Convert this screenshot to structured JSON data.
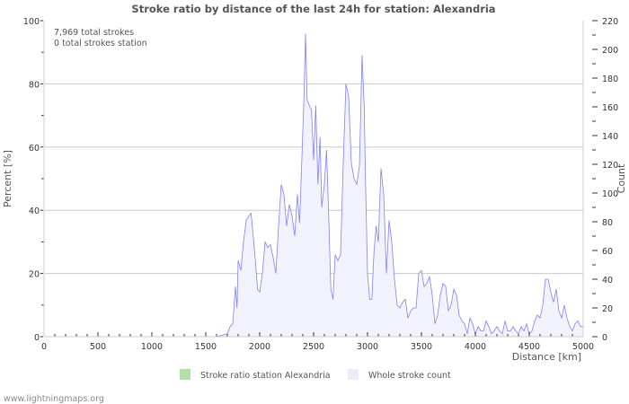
{
  "chart_data": {
    "type": "area",
    "title": "Stroke ratio by distance of the last 24h for station: Alexandria",
    "xlabel": "Distance   [km]",
    "ylabel_left": "Percent   [%]",
    "ylabel_right": "Count",
    "xlim": [
      0,
      5000
    ],
    "ylim_left": [
      0,
      100
    ],
    "ylim_right": [
      0,
      220
    ],
    "x_ticks": [
      "0",
      "500",
      "1000",
      "1500",
      "2000",
      "2500",
      "3000",
      "3500",
      "4000",
      "4500",
      "5000"
    ],
    "y_ticks_left": [
      "0",
      "20",
      "40",
      "60",
      "80",
      "100"
    ],
    "y_ticks_right": [
      "0",
      "20",
      "40",
      "60",
      "80",
      "100",
      "120",
      "140",
      "160",
      "180",
      "200",
      "220"
    ],
    "grid": true,
    "annotations": [
      "7,969 total strokes",
      "0 total strokes station"
    ],
    "legend": {
      "placement": "bottom",
      "items": [
        {
          "label": "Stroke ratio station Alexandria",
          "color": "#b3e0a8"
        },
        {
          "label": "Whole stroke count",
          "color": "#ecebfb"
        }
      ]
    },
    "series": [
      {
        "name": "Stroke ratio station Alexandria",
        "axis": "left",
        "values": []
      },
      {
        "name": "Whole stroke count",
        "axis": "right",
        "line_color": "#8080ff",
        "fill_color": "#f2f2fc",
        "points": [
          [
            0,
            0
          ],
          [
            1600,
            0
          ],
          [
            1650,
            1
          ],
          [
            1700,
            2
          ],
          [
            1725,
            7
          ],
          [
            1750,
            9
          ],
          [
            1775,
            35
          ],
          [
            1790,
            20
          ],
          [
            1800,
            53
          ],
          [
            1825,
            46
          ],
          [
            1850,
            66
          ],
          [
            1875,
            81
          ],
          [
            1900,
            84
          ],
          [
            1920,
            86
          ],
          [
            1940,
            70
          ],
          [
            1960,
            53
          ],
          [
            1980,
            33
          ],
          [
            2000,
            31
          ],
          [
            2025,
            44
          ],
          [
            2050,
            66
          ],
          [
            2075,
            62
          ],
          [
            2100,
            64
          ],
          [
            2125,
            55
          ],
          [
            2150,
            44
          ],
          [
            2175,
            77
          ],
          [
            2200,
            106
          ],
          [
            2225,
            99
          ],
          [
            2250,
            77
          ],
          [
            2275,
            92
          ],
          [
            2300,
            84
          ],
          [
            2325,
            70
          ],
          [
            2350,
            99
          ],
          [
            2370,
            79
          ],
          [
            2390,
            121
          ],
          [
            2410,
            165
          ],
          [
            2425,
            211
          ],
          [
            2440,
            165
          ],
          [
            2460,
            161
          ],
          [
            2480,
            158
          ],
          [
            2500,
            123
          ],
          [
            2520,
            161
          ],
          [
            2540,
            106
          ],
          [
            2560,
            139
          ],
          [
            2575,
            90
          ],
          [
            2600,
            106
          ],
          [
            2620,
            130
          ],
          [
            2640,
            84
          ],
          [
            2660,
            33
          ],
          [
            2680,
            26
          ],
          [
            2700,
            57
          ],
          [
            2725,
            53
          ],
          [
            2750,
            57
          ],
          [
            2775,
            121
          ],
          [
            2800,
            176
          ],
          [
            2825,
            167
          ],
          [
            2850,
            121
          ],
          [
            2875,
            110
          ],
          [
            2900,
            106
          ],
          [
            2925,
            119
          ],
          [
            2950,
            196
          ],
          [
            2970,
            158
          ],
          [
            2980,
            114
          ],
          [
            3000,
            44
          ],
          [
            3020,
            26
          ],
          [
            3040,
            26
          ],
          [
            3060,
            59
          ],
          [
            3080,
            77
          ],
          [
            3100,
            66
          ],
          [
            3125,
            117
          ],
          [
            3150,
            99
          ],
          [
            3175,
            44
          ],
          [
            3200,
            81
          ],
          [
            3225,
            66
          ],
          [
            3250,
            40
          ],
          [
            3275,
            22
          ],
          [
            3300,
            20
          ],
          [
            3325,
            24
          ],
          [
            3350,
            26
          ],
          [
            3375,
            13
          ],
          [
            3400,
            18
          ],
          [
            3425,
            20
          ],
          [
            3450,
            20
          ],
          [
            3475,
            44
          ],
          [
            3500,
            46
          ],
          [
            3525,
            35
          ],
          [
            3550,
            37
          ],
          [
            3575,
            42
          ],
          [
            3600,
            29
          ],
          [
            3625,
            9
          ],
          [
            3650,
            15
          ],
          [
            3675,
            29
          ],
          [
            3700,
            37
          ],
          [
            3725,
            35
          ],
          [
            3750,
            18
          ],
          [
            3775,
            22
          ],
          [
            3800,
            33
          ],
          [
            3825,
            29
          ],
          [
            3850,
            15
          ],
          [
            3875,
            11
          ],
          [
            3900,
            9
          ],
          [
            3925,
            2
          ],
          [
            3950,
            13
          ],
          [
            3975,
            9
          ],
          [
            4000,
            2
          ],
          [
            4025,
            7
          ],
          [
            4050,
            4
          ],
          [
            4075,
            4
          ],
          [
            4100,
            11
          ],
          [
            4125,
            7
          ],
          [
            4150,
            2
          ],
          [
            4175,
            4
          ],
          [
            4200,
            7
          ],
          [
            4225,
            4
          ],
          [
            4250,
            2
          ],
          [
            4275,
            11
          ],
          [
            4300,
            4
          ],
          [
            4325,
            4
          ],
          [
            4350,
            7
          ],
          [
            4375,
            4
          ],
          [
            4400,
            2
          ],
          [
            4425,
            7
          ],
          [
            4450,
            4
          ],
          [
            4475,
            9
          ],
          [
            4500,
            2
          ],
          [
            4525,
            4
          ],
          [
            4550,
            11
          ],
          [
            4575,
            15
          ],
          [
            4600,
            13
          ],
          [
            4625,
            22
          ],
          [
            4650,
            40
          ],
          [
            4675,
            40
          ],
          [
            4700,
            31
          ],
          [
            4725,
            24
          ],
          [
            4750,
            33
          ],
          [
            4775,
            18
          ],
          [
            4800,
            13
          ],
          [
            4825,
            22
          ],
          [
            4850,
            13
          ],
          [
            4875,
            7
          ],
          [
            4900,
            4
          ],
          [
            4925,
            9
          ],
          [
            4950,
            11
          ],
          [
            4975,
            7
          ],
          [
            5000,
            7
          ]
        ]
      }
    ]
  },
  "footer": "www.lightningmaps.org"
}
